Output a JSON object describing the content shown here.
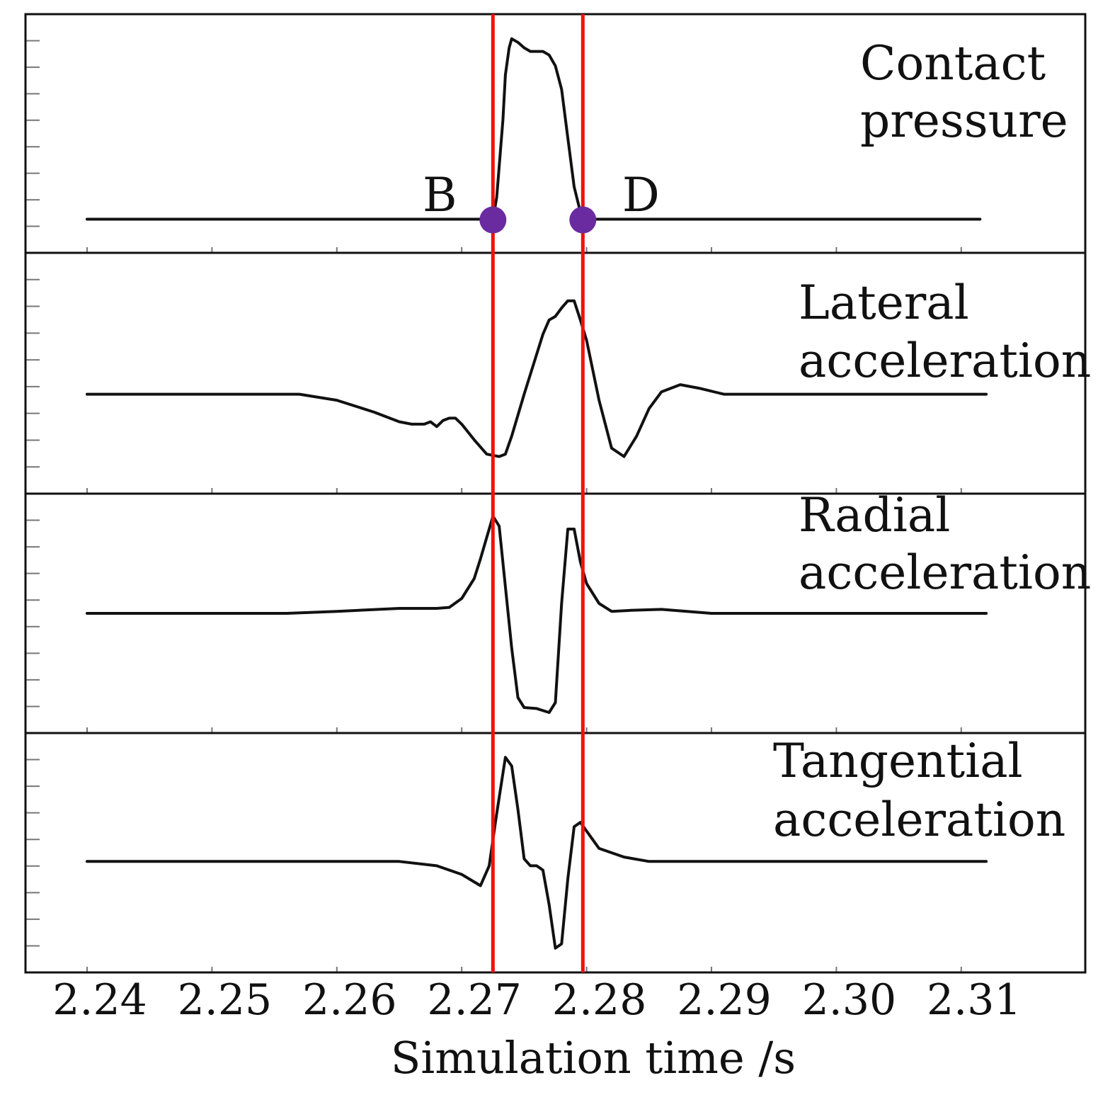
{
  "chart_data": {
    "type": "line",
    "xlabel": "Simulation time /s",
    "xlim": [
      2.235,
      2.32
    ],
    "x_ticks": [
      "2.24",
      "2.25",
      "2.26",
      "2.27",
      "2.28",
      "2.29",
      "2.30",
      "2.31"
    ],
    "x_tick_values": [
      2.24,
      2.25,
      2.26,
      2.27,
      2.28,
      2.29,
      2.3,
      2.31
    ],
    "grid": false,
    "shared_x_axis": true,
    "panels": [
      {
        "label_lines": [
          "Contact",
          "pressure"
        ],
        "ylim": [
          -0.1,
          1.05
        ],
        "series": {
          "x": [
            2.24,
            2.2725,
            2.2728,
            2.2733,
            2.2735,
            2.2738,
            2.274,
            2.2745,
            2.275,
            2.2755,
            2.276,
            2.2765,
            2.277,
            2.2775,
            2.278,
            2.2785,
            2.279,
            2.2795,
            2.2798,
            2.2799,
            2.28,
            2.2805,
            2.3115
          ],
          "y": [
            0,
            0,
            0.12,
            0.55,
            0.8,
            0.95,
            1.0,
            0.98,
            0.95,
            0.93,
            0.93,
            0.93,
            0.91,
            0.85,
            0.72,
            0.45,
            0.18,
            0.04,
            0.01,
            0.005,
            0,
            0,
            0
          ]
        }
      },
      {
        "label_lines": [
          "Lateral",
          "acceleration"
        ],
        "ylim": [
          -0.7,
          1.05
        ],
        "series": {
          "x": [
            2.24,
            2.257,
            2.26,
            2.263,
            2.265,
            2.266,
            2.267,
            2.2675,
            2.268,
            2.2685,
            2.269,
            2.2695,
            2.27,
            2.271,
            2.272,
            2.273,
            2.2735,
            2.274,
            2.275,
            2.2765,
            2.277,
            2.2775,
            2.278,
            2.2785,
            2.279,
            2.2795,
            2.28,
            2.2805,
            2.281,
            2.282,
            2.283,
            2.284,
            2.285,
            2.286,
            2.2875,
            2.289,
            2.291,
            2.294,
            2.312
          ],
          "y": [
            0,
            0,
            -0.05,
            -0.15,
            -0.23,
            -0.25,
            -0.25,
            -0.23,
            -0.27,
            -0.22,
            -0.2,
            -0.2,
            -0.25,
            -0.38,
            -0.5,
            -0.52,
            -0.5,
            -0.35,
            0,
            0.5,
            0.62,
            0.65,
            0.72,
            0.78,
            0.78,
            0.62,
            0.45,
            0.2,
            -0.05,
            -0.45,
            -0.52,
            -0.35,
            -0.12,
            0.02,
            0.08,
            0.05,
            0,
            0,
            0
          ]
        }
      },
      {
        "label_lines": [
          "Radial",
          "acceleration"
        ],
        "ylim": [
          -1.05,
          1.05
        ],
        "series": {
          "x": [
            2.24,
            2.256,
            2.26,
            2.265,
            2.268,
            2.269,
            2.27,
            2.271,
            2.2715,
            2.2725,
            2.273,
            2.274,
            2.2745,
            2.275,
            2.276,
            2.277,
            2.2775,
            2.278,
            2.2785,
            2.279,
            2.2795,
            2.28,
            2.281,
            2.282,
            2.2835,
            2.286,
            2.29,
            2.312
          ],
          "y": [
            0,
            0,
            0.02,
            0.05,
            0.05,
            0.06,
            0.15,
            0.35,
            0.55,
            0.98,
            0.88,
            -0.35,
            -0.85,
            -0.95,
            -0.96,
            -1.0,
            -0.9,
            0.1,
            0.85,
            0.85,
            0.52,
            0.3,
            0.1,
            0.02,
            0.03,
            0.04,
            0,
            0
          ]
        }
      },
      {
        "label_lines": [
          "Tangential",
          "acceleration"
        ],
        "ylim": [
          -1.1,
          1.3
        ],
        "series": {
          "x": [
            2.24,
            2.26,
            2.265,
            2.268,
            2.27,
            2.2715,
            2.2722,
            2.2728,
            2.2735,
            2.274,
            2.2745,
            2.275,
            2.2755,
            2.276,
            2.2765,
            2.277,
            2.2775,
            2.278,
            2.2785,
            2.279,
            2.2795,
            2.28,
            2.281,
            2.283,
            2.285,
            2.312
          ],
          "y": [
            0,
            0,
            0,
            -0.05,
            -0.15,
            -0.28,
            -0.05,
            0.55,
            1.2,
            1.1,
            0.6,
            0.03,
            -0.05,
            -0.05,
            -0.1,
            -0.5,
            -1.0,
            -0.95,
            -0.2,
            0.4,
            0.45,
            0.35,
            0.15,
            0.05,
            0.0,
            0
          ]
        }
      }
    ],
    "markers": [
      {
        "label": "B",
        "x": 2.2725
      },
      {
        "label": "D",
        "x": 2.2797
      }
    ],
    "colors": {
      "trace": "#111111",
      "marker_line": "#ee1111",
      "marker_dot": "#6a2aa0"
    }
  }
}
